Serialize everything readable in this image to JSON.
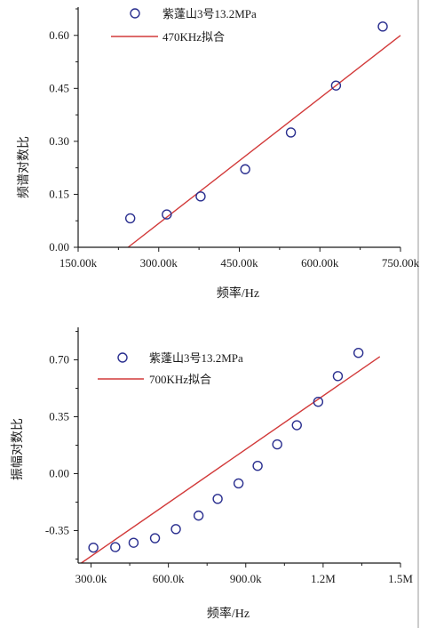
{
  "chart_data": [
    {
      "type": "scatter",
      "xlabel": "频率/Hz",
      "ylabel": "频谱对数比",
      "xlim": [
        150000,
        750000
      ],
      "ylim": [
        0.0,
        0.68
      ],
      "x_ticks": [
        150000,
        300000,
        450000,
        600000,
        750000
      ],
      "x_tick_labels": [
        "150.00k",
        "300.00k",
        "450.00k",
        "600.00k",
        "750.00k"
      ],
      "y_ticks": [
        0.0,
        0.15,
        0.3,
        0.45,
        0.6
      ],
      "y_tick_labels": [
        "0.00",
        "0.15",
        "0.30",
        "0.45",
        "0.60"
      ],
      "legend_position": "top-left",
      "series": [
        {
          "name": "紫蓬山3号13.2MPa",
          "kind": "scatter",
          "color": "#2a2f8f",
          "x": [
            247000,
            315000,
            378000,
            461000,
            546000,
            630000,
            717000
          ],
          "y": [
            0.082,
            0.093,
            0.144,
            0.221,
            0.325,
            0.458,
            0.625
          ]
        },
        {
          "name": "470KHz拟合",
          "kind": "line",
          "color": "#d23a3a",
          "x": [
            243000,
            750000
          ],
          "y": [
            0.0,
            0.6
          ]
        }
      ]
    },
    {
      "type": "scatter",
      "xlabel": "频率/Hz",
      "ylabel": "振幅对数比",
      "xlim": [
        250000,
        1500000
      ],
      "ylim": [
        -0.55,
        0.9
      ],
      "x_ticks": [
        300000,
        600000,
        900000,
        1200000,
        1500000
      ],
      "x_tick_labels": [
        "300.0k",
        "600.0k",
        "900.0k",
        "1.2M",
        "1.5M"
      ],
      "y_ticks": [
        -0.35,
        0.0,
        0.35,
        0.7
      ],
      "y_tick_labels": [
        "-0.35",
        "0.00",
        "0.35",
        "0.70"
      ],
      "legend_position": "top-left",
      "series": [
        {
          "name": "紫蓬山3号13.2MPa",
          "kind": "scatter",
          "color": "#2a2f8f",
          "x": [
            309000,
            394000,
            465000,
            548000,
            629000,
            717000,
            791000,
            872000,
            946000,
            1022000,
            1098000,
            1181000,
            1257000,
            1337000
          ],
          "y": [
            -0.455,
            -0.452,
            -0.425,
            -0.397,
            -0.341,
            -0.258,
            -0.155,
            -0.06,
            0.048,
            0.18,
            0.298,
            0.442,
            0.6,
            0.743
          ]
        },
        {
          "name": "700KHz拟合",
          "kind": "line",
          "color": "#d23a3a",
          "x": [
            262000,
            1420000
          ],
          "y": [
            -0.55,
            0.72
          ]
        }
      ]
    }
  ]
}
